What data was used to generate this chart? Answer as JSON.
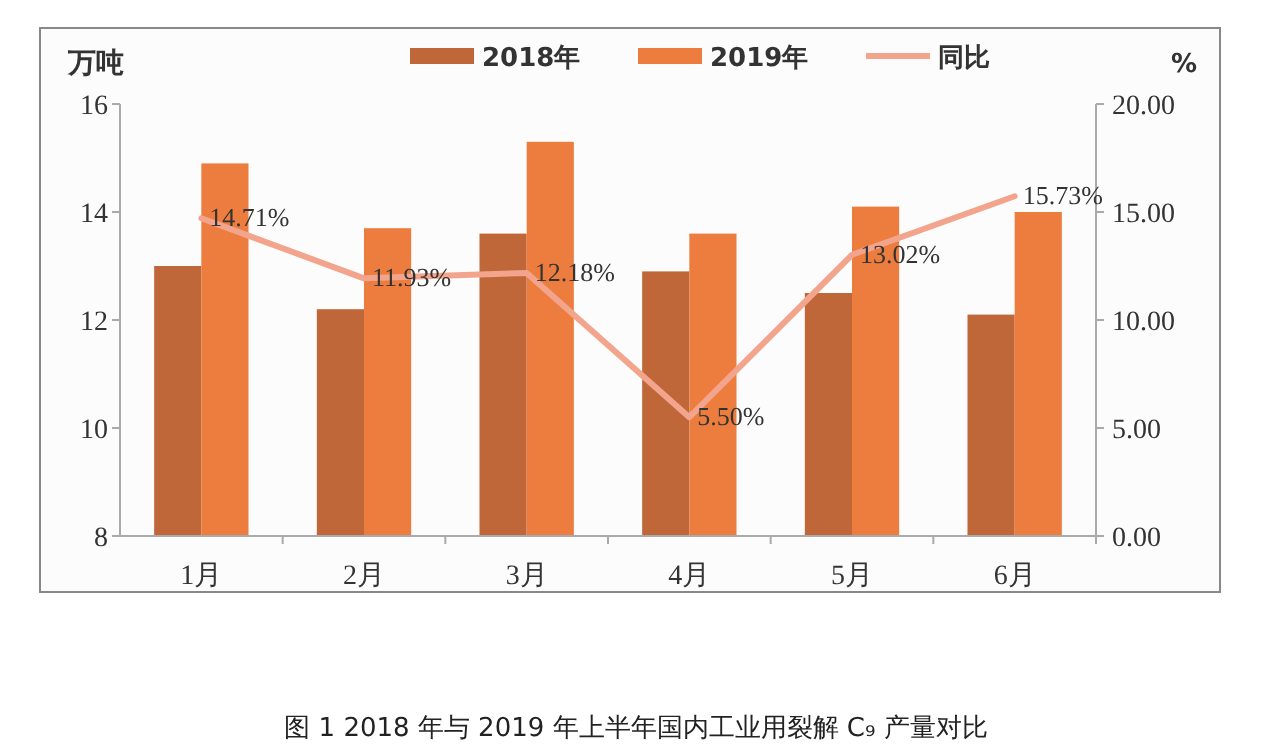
{
  "chart_data": {
    "type": "bar",
    "ylabel": "万吨",
    "y2label": "%",
    "categories": [
      "1月",
      "2月",
      "3月",
      "4月",
      "5月",
      "6月"
    ],
    "series": [
      {
        "name": "2018年",
        "color": "#c0673a",
        "values": [
          13.0,
          12.2,
          13.6,
          12.9,
          12.5,
          12.1
        ]
      },
      {
        "name": "2019年",
        "color": "#ed7d3f",
        "values": [
          14.9,
          13.7,
          15.3,
          13.6,
          14.1,
          14.0
        ]
      },
      {
        "name": "同比",
        "type": "line",
        "axis": "y2",
        "color": "#f2a58c",
        "values": [
          14.71,
          11.93,
          12.18,
          5.5,
          13.02,
          15.73
        ],
        "value_labels": [
          "14.71%",
          "11.93%",
          "12.18%",
          "5.50%",
          "13.02%",
          "15.73%"
        ]
      }
    ],
    "ylim": [
      8,
      16
    ],
    "yticks": [
      8,
      10,
      12,
      14,
      16
    ],
    "y2lim": [
      0,
      20
    ],
    "y2ticks": [
      {
        "value": 0,
        "label": "0.00"
      },
      {
        "value": 5,
        "label": "5.00"
      },
      {
        "value": 10,
        "label": "10.00"
      },
      {
        "value": 15,
        "label": "15.00"
      },
      {
        "value": 20,
        "label": "20.00"
      }
    ],
    "legend": "top",
    "marker": "none",
    "line_style": "solid",
    "annotations": [
      "图 1  2018 年与 2019 年上半年国内工业用裂解 C₉ 产量对比"
    ]
  }
}
